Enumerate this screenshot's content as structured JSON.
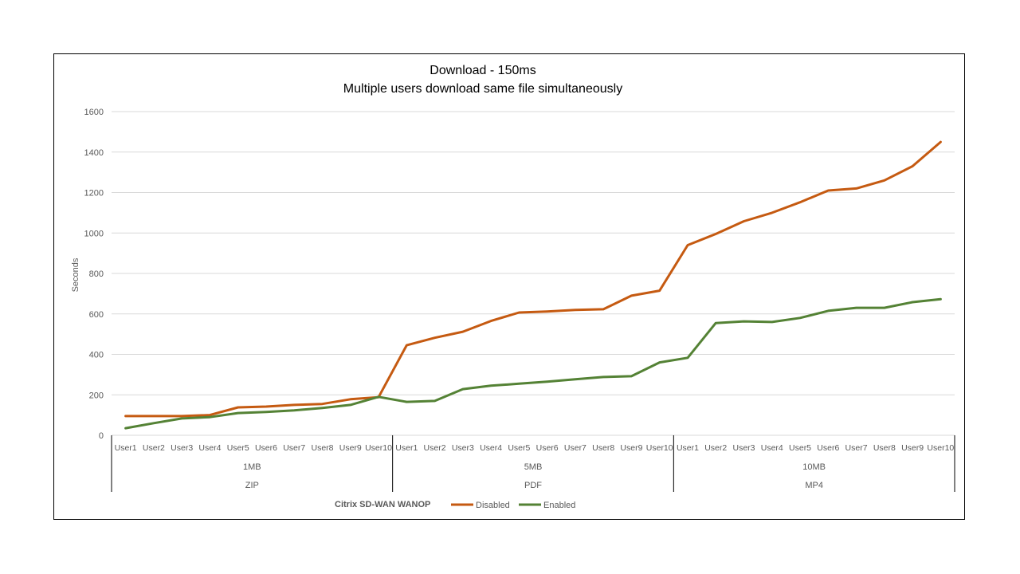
{
  "chart_data": {
    "type": "line",
    "title": "Download - 150ms",
    "subtitle": "Multiple users download same file simultaneously",
    "ylabel": "Seconds",
    "xlabel": "",
    "ylim": [
      0,
      1600
    ],
    "yticks": [
      "0",
      "200",
      "400",
      "600",
      "800",
      "1000",
      "1200",
      "1400",
      "1600"
    ],
    "grid": true,
    "categories": [
      "User1",
      "User2",
      "User3",
      "User4",
      "User5",
      "User6",
      "User7",
      "User8",
      "User9",
      "User10",
      "User1",
      "User2",
      "User3",
      "User4",
      "User5",
      "User6",
      "User7",
      "User8",
      "User9",
      "User10",
      "User1",
      "User2",
      "User3",
      "User4",
      "User5",
      "User6",
      "User7",
      "User8",
      "User9",
      "User10"
    ],
    "groups": [
      {
        "size": "1MB",
        "type": "ZIP",
        "count": 10
      },
      {
        "size": "5MB",
        "type": "PDF",
        "count": 10
      },
      {
        "size": "10MB",
        "type": "MP4",
        "count": 10
      }
    ],
    "legend_title": "Citrix SD-WAN WANOP",
    "legend_position": "bottom",
    "series": [
      {
        "name": "Disabled",
        "color": "#C55A11",
        "values": [
          95,
          95,
          95,
          100,
          138,
          142,
          150,
          155,
          178,
          188,
          445,
          482,
          512,
          565,
          607,
          612,
          620,
          623,
          690,
          715,
          940,
          995,
          1058,
          1100,
          1152,
          1210,
          1220,
          1260,
          1330,
          1450
        ]
      },
      {
        "name": "Enabled",
        "color": "#548235",
        "values": [
          35,
          60,
          83,
          90,
          110,
          115,
          123,
          135,
          150,
          190,
          165,
          170,
          228,
          245,
          255,
          265,
          277,
          288,
          292,
          360,
          383,
          555,
          563,
          560,
          580,
          615,
          630,
          630,
          658,
          673
        ]
      }
    ]
  }
}
